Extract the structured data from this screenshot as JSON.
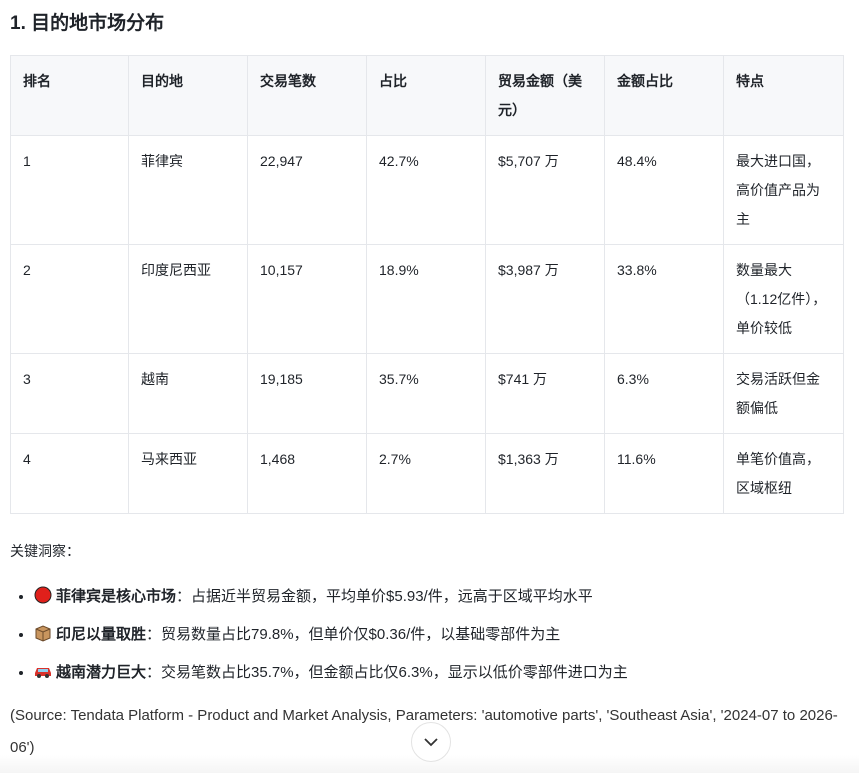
{
  "section_title": "1. 目的地市场分布",
  "table": {
    "headers": [
      "排名",
      "目的地",
      "交易笔数",
      "占比",
      "贸易金额（美元）",
      "金额占比",
      "特点"
    ],
    "rows": [
      [
        "1",
        "菲律宾",
        "22,947",
        "42.7%",
        "$5,707 万",
        "48.4%",
        "最大进口国，高价值产品为主"
      ],
      [
        "2",
        "印度尼西亚",
        "10,157",
        "18.9%",
        "$3,987 万",
        "33.8%",
        "数量最大（1.12亿件），单价较低"
      ],
      [
        "3",
        "越南",
        "19,185",
        "35.7%",
        "$741 万",
        "6.3%",
        "交易活跃但金额偏低"
      ],
      [
        "4",
        "马来西亚",
        "1,468",
        "2.7%",
        "$1,363 万",
        "11.6%",
        "单笔价值高，区域枢纽"
      ]
    ]
  },
  "insights": {
    "title": "关键洞察：",
    "items": [
      {
        "icon": "red-circle-icon",
        "bold": "菲律宾是核心市场",
        "text": "：占据近半贸易金额，平均单价$5.93/件，远高于区域平均水平"
      },
      {
        "icon": "package-icon",
        "bold": "印尼以量取胜",
        "text": "：贸易数量占比79.8%，但单价仅$0.36/件，以基础零部件为主"
      },
      {
        "icon": "car-icon",
        "bold": "越南潜力巨大",
        "text": "：交易笔数占比35.7%，但金额占比仅6.3%，显示以低价零部件进口为主"
      }
    ]
  },
  "source": "(Source: Tendata Platform - Product and Market Analysis, Parameters: 'automotive parts', 'Southeast Asia', '2024-07 to 2026-06')",
  "scroll_button_icon": "chevron-down-icon"
}
